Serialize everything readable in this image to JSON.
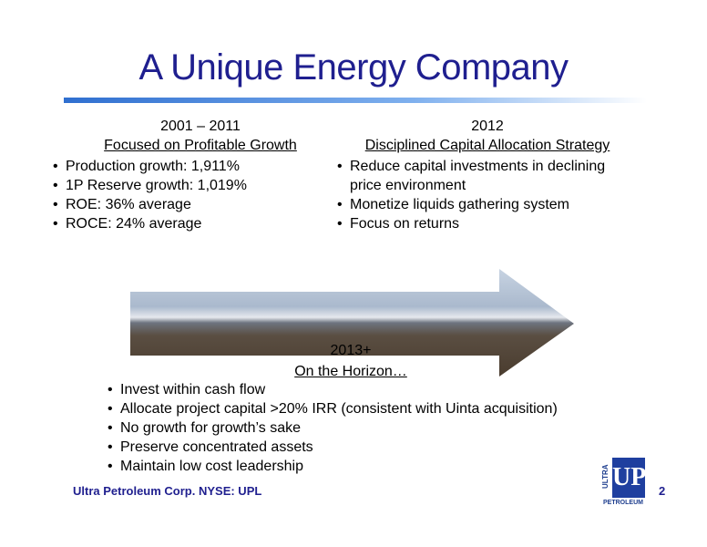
{
  "title": "A Unique Energy Company",
  "left": {
    "heading": "2001 – 2011",
    "subheading": "Focused on Profitable Growth",
    "bullets": [
      "Production growth: 1,911%",
      "1P Reserve growth: 1,019%",
      "ROE: 36% average",
      "ROCE: 24% average"
    ]
  },
  "right": {
    "heading": "2012",
    "subheading": "Disciplined Capital Allocation Strategy",
    "bullets": [
      "Reduce capital investments in declining price environment",
      "Monetize liquids gathering system",
      "Focus on returns"
    ]
  },
  "bottom": {
    "heading": "2013+",
    "subheading": "On the Horizon…",
    "bullets": [
      "Invest within cash flow",
      "Allocate project capital >20% IRR (consistent with Uinta acquisition)",
      "No growth for growth’s sake",
      "Preserve concentrated assets",
      "Maintain low cost leadership"
    ]
  },
  "footer": "Ultra Petroleum Corp. NYSE: UPL",
  "page_number": "2",
  "logo": {
    "top": "ULTRA",
    "mark": "UP",
    "bottom": "PETROLEUM"
  }
}
